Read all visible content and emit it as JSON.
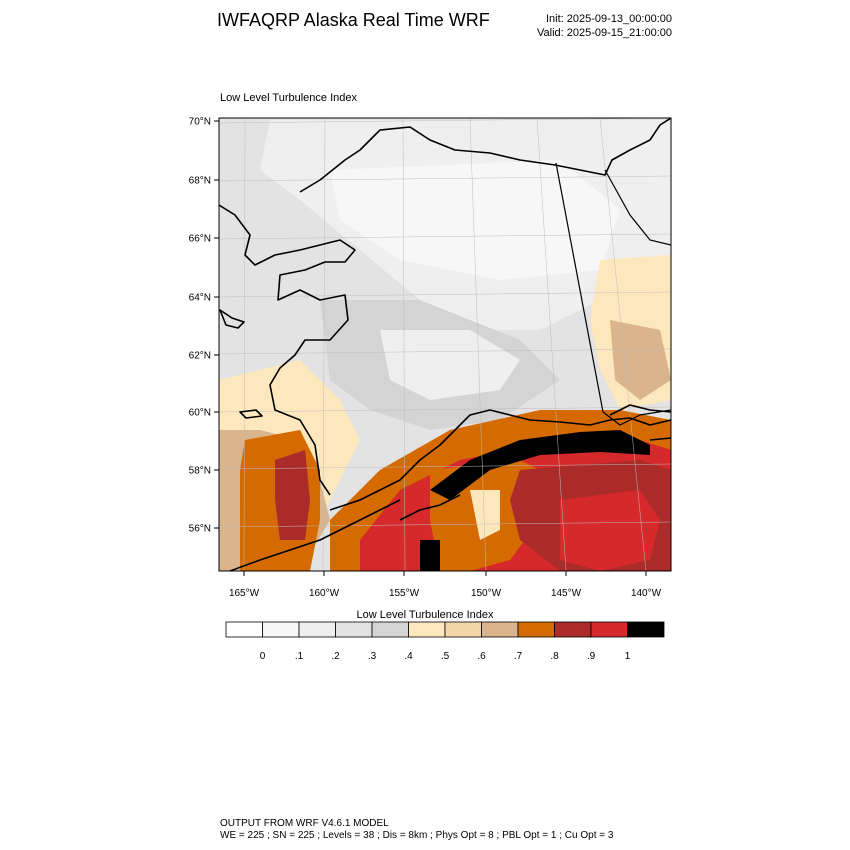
{
  "header": {
    "title": "IWFAQRP Alaska Real Time WRF",
    "init": "Init: 2025-09-13_00:00:00",
    "valid": "Valid: 2025-09-15_21:00:00"
  },
  "map": {
    "title": "Low Level Turbulence Index",
    "lat_labels": [
      "70°N",
      "68°N",
      "66°N",
      "64°N",
      "62°N",
      "60°N",
      "58°N",
      "56°N"
    ],
    "lon_labels": [
      "165°W",
      "160°W",
      "155°W",
      "150°W",
      "145°W",
      "140°W"
    ]
  },
  "colorbar": {
    "title": "Low Level Turbulence Index",
    "colors": [
      "#ffffff",
      "#f7f7f7",
      "#efefef",
      "#e3e3e3",
      "#d4d4d4",
      "#fde7bd",
      "#f3d7a8",
      "#d9b48c",
      "#d46a00",
      "#ab2a2a",
      "#d6292b",
      "#000000"
    ],
    "labels": [
      "0",
      ".1",
      ".2",
      ".3",
      ".4",
      ".5",
      ".6",
      ".7",
      ".8",
      ".9",
      "1"
    ]
  },
  "footer": {
    "line1": "OUTPUT FROM WRF V4.6.1 MODEL",
    "line2": "WE = 225 ; SN = 225 ; Levels = 38 ; Dis = 8km ; Phys Opt = 8 ; PBL Opt = 1 ; Cu Opt = 3"
  }
}
